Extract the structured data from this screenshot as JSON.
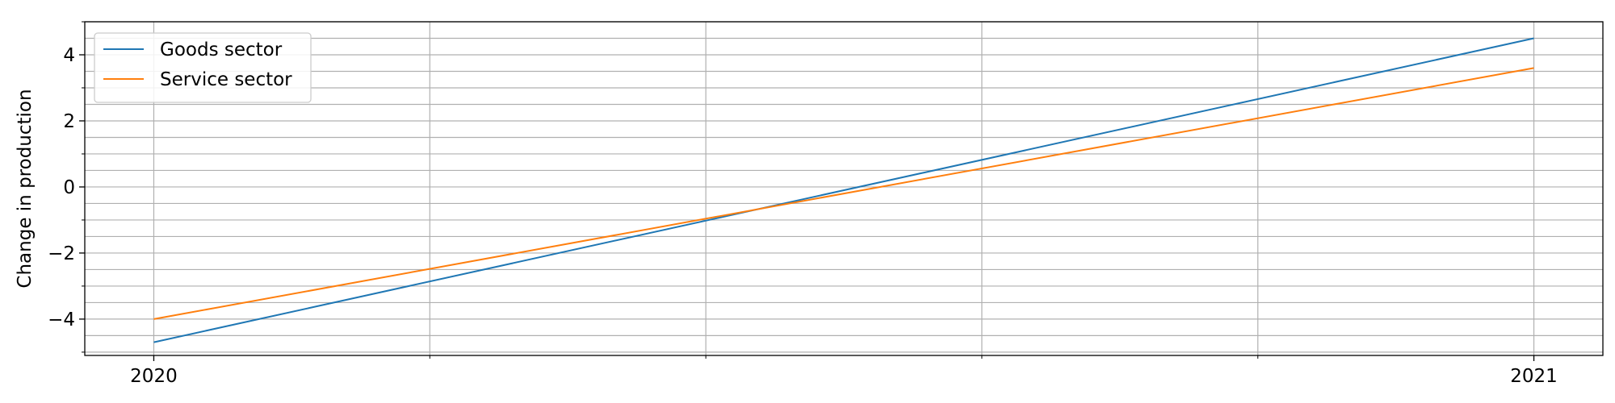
{
  "chart_data": {
    "type": "line",
    "title": "",
    "xlabel": "",
    "ylabel": "Change in production",
    "x": [
      2020,
      2021
    ],
    "x_tick_labels": [
      "2020",
      "2021"
    ],
    "xlim": [
      2019.95,
      2021.05
    ],
    "ylim": [
      -5.1,
      5.0
    ],
    "y_ticks": [
      -4,
      -2,
      0,
      2,
      4
    ],
    "y_tick_labels": [
      "−4",
      "−2",
      "0",
      "2",
      "4"
    ],
    "grid": true,
    "legend_position": "upper-left",
    "series": [
      {
        "name": "Goods sector",
        "color": "#1f77b4",
        "values": [
          -4.7,
          4.5
        ]
      },
      {
        "name": "Service sector",
        "color": "#ff7f0e",
        "values": [
          -4.0,
          3.6
        ]
      }
    ]
  }
}
